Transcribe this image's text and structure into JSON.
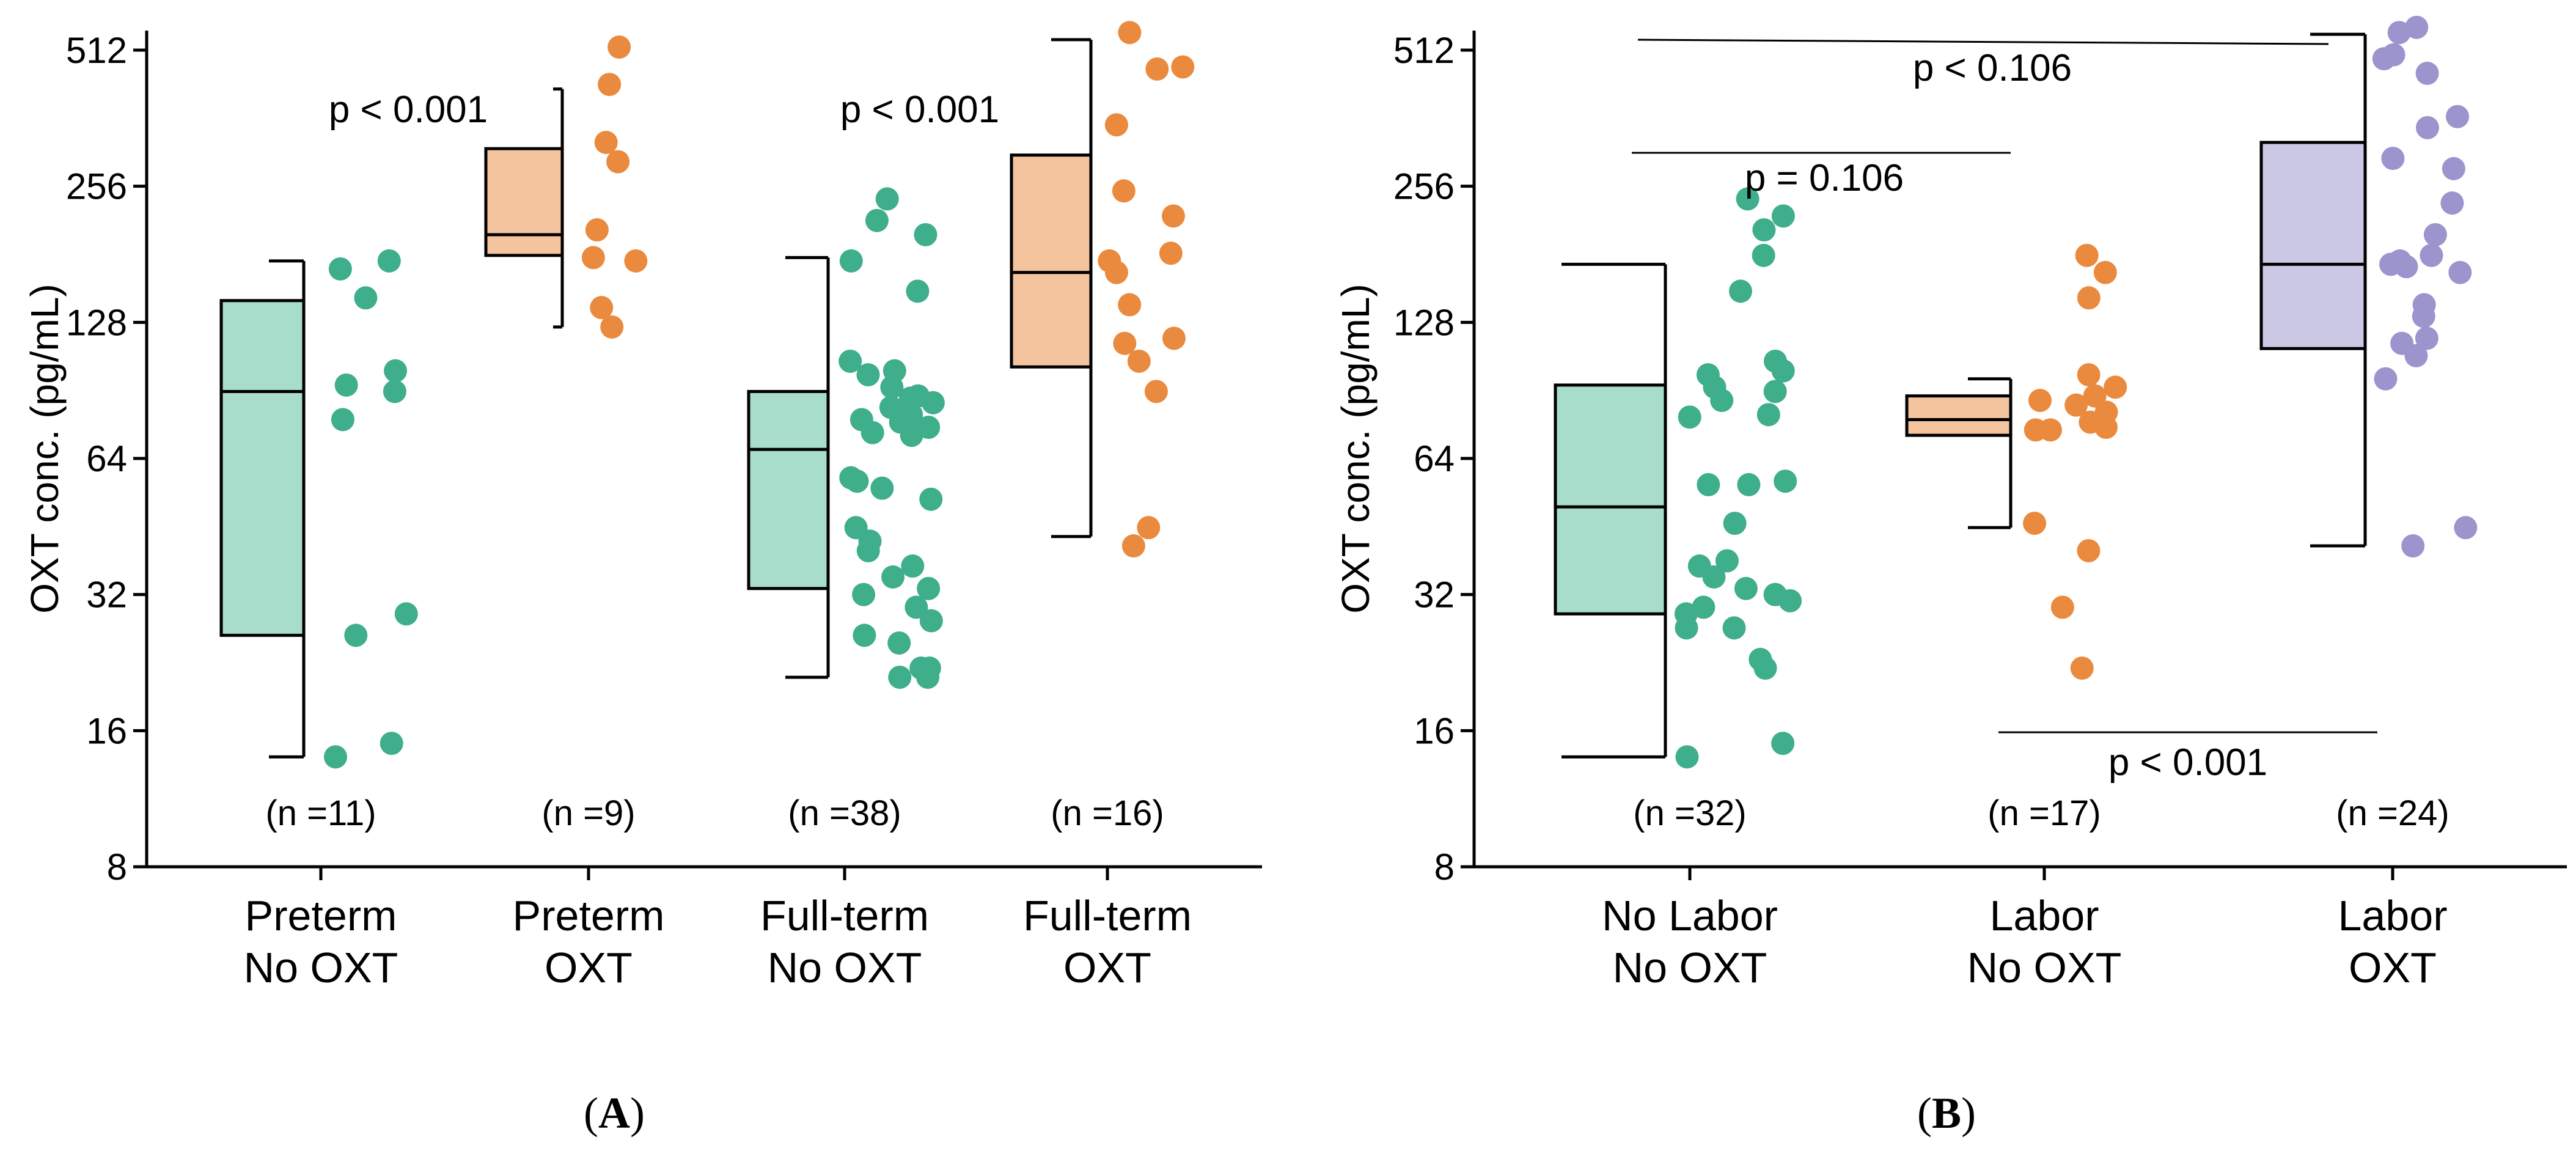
{
  "colors": {
    "green_dot": "#3fae8a",
    "green_box": "#a8dccb",
    "orange_dot": "#ea8a3e",
    "orange_box": "#f4c49e",
    "purple_dot": "#9b94cd",
    "purple_box": "#cbc8e6",
    "axis": "#000000"
  },
  "chart_data": [
    {
      "type": "box",
      "panel_label": "A",
      "ylabel": "OXT conc. (pg/mL)",
      "yscale": "log2",
      "ylim": [
        8,
        600
      ],
      "yticks": [
        8,
        16,
        32,
        64,
        128,
        256,
        512
      ],
      "ytick_labels": [
        "8",
        "16",
        "32",
        "64",
        "128",
        "256",
        "512"
      ],
      "groups": [
        {
          "label_lines": [
            "Preterm",
            "No OXT"
          ],
          "n_label": "(n =11)",
          "color": "green",
          "q1": 26,
          "median": 90,
          "q3": 143,
          "whisker_low": 14,
          "whisker_high": 175,
          "points": [
            175,
            168,
            145,
            100,
            93,
            90,
            78,
            29,
            26,
            15,
            14
          ]
        },
        {
          "label_lines": [
            "Preterm",
            "OXT"
          ],
          "n_label": "(n =9)",
          "color": "orange",
          "q1": 180,
          "median": 200,
          "q3": 310,
          "whisker_low": 125,
          "whisker_high": 420,
          "points": [
            520,
            430,
            320,
            290,
            205,
            178,
            175,
            138,
            125
          ]
        },
        {
          "label_lines": [
            "Full-term",
            "No OXT"
          ],
          "n_label": "(n =38)",
          "color": "green",
          "q1": 33,
          "median": 67,
          "q3": 90,
          "whisker_low": 21,
          "whisker_high": 178,
          "points": [
            240,
            215,
            200,
            175,
            150,
            105,
            100,
            98,
            92,
            88,
            87,
            85,
            83,
            80,
            78,
            77,
            75,
            73,
            72,
            58,
            57,
            55,
            52,
            45,
            42,
            40,
            37,
            35,
            33,
            32,
            30,
            28,
            26,
            25,
            22,
            22,
            21,
            21
          ]
        },
        {
          "label_lines": [
            "Full-term",
            "OXT"
          ],
          "n_label": "(n =16)",
          "color": "orange",
          "q1": 102,
          "median": 165,
          "q3": 300,
          "whisker_low": 43,
          "whisker_high": 540,
          "points": [
            560,
            470,
            465,
            350,
            250,
            220,
            182,
            175,
            165,
            140,
            118,
            115,
            105,
            90,
            45,
            41
          ]
        }
      ],
      "annotations": [
        {
          "text": "p < 0.001"
        },
        {
          "text": "p < 0.001"
        }
      ]
    },
    {
      "type": "box",
      "panel_label": "B",
      "ylabel": "OXT conc. (pg/mL)",
      "yscale": "log2",
      "ylim": [
        8,
        600
      ],
      "yticks": [
        8,
        16,
        32,
        64,
        128,
        256,
        512
      ],
      "ytick_labels": [
        "8",
        "16",
        "32",
        "64",
        "128",
        "256",
        "512"
      ],
      "groups": [
        {
          "label_lines": [
            "No Labor",
            "No OXT"
          ],
          "n_label": "(n =32)",
          "color": "green",
          "q1": 29,
          "median": 50,
          "q3": 93,
          "whisker_low": 14,
          "whisker_high": 172,
          "points": [
            240,
            220,
            205,
            180,
            150,
            105,
            100,
            98,
            92,
            90,
            86,
            80,
            79,
            57,
            56,
            56,
            46,
            38,
            37,
            35,
            33,
            32,
            32,
            31,
            30,
            29,
            27,
            27,
            23,
            22,
            15,
            14
          ]
        },
        {
          "label_lines": [
            "Labor",
            "No OXT"
          ],
          "n_label": "(n =17)",
          "color": "orange",
          "q1": 72,
          "median": 78,
          "q3": 88,
          "whisker_low": 45,
          "whisker_high": 96,
          "points": [
            180,
            165,
            145,
            98,
            92,
            88,
            86,
            84,
            81,
            77,
            75,
            74,
            74,
            46,
            40,
            30,
            22
          ]
        },
        {
          "label_lines": [
            "Labor",
            "OXT"
          ],
          "n_label": "(n =24)",
          "color": "purple",
          "q1": 112,
          "median": 172,
          "q3": 320,
          "whisker_low": 41,
          "whisker_high": 555,
          "points": [
            575,
            560,
            500,
            490,
            455,
            365,
            345,
            295,
            280,
            235,
            200,
            180,
            175,
            172,
            170,
            165,
            140,
            132,
            118,
            115,
            108,
            96,
            45,
            41
          ]
        }
      ],
      "annotations": [
        {
          "text": "p < 0.106"
        },
        {
          "text": "p = 0.106"
        },
        {
          "text": "p < 0.001"
        }
      ]
    }
  ]
}
